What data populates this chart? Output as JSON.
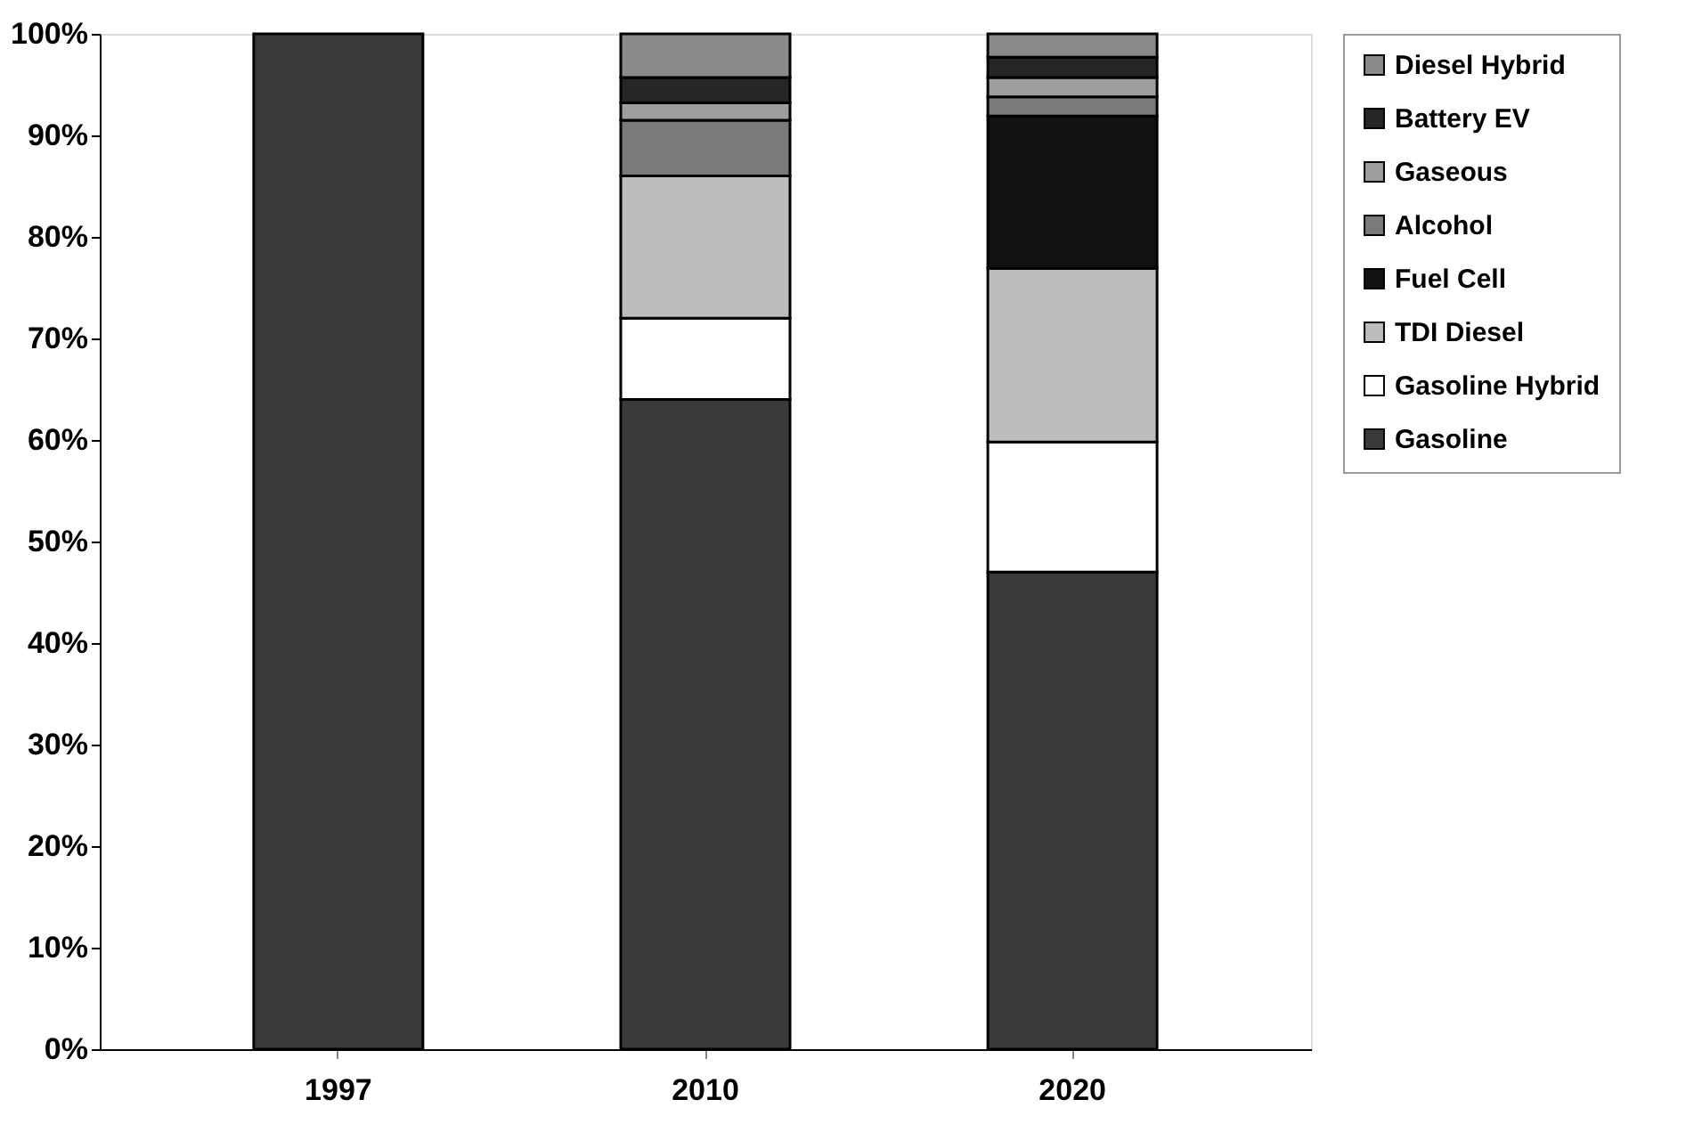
{
  "chart_data": {
    "type": "bar",
    "stacked": true,
    "categories": [
      "1997",
      "2010",
      "2020"
    ],
    "series": [
      {
        "name": "Gasoline",
        "color": "#3a3a3a",
        "values": [
          100,
          64,
          47
        ]
      },
      {
        "name": "Gasoline Hybrid",
        "color": "#ffffff",
        "values": [
          null,
          8,
          12.8
        ]
      },
      {
        "name": "TDI Diesel",
        "color": "#bdbdbd",
        "values": [
          null,
          14,
          17.1
        ]
      },
      {
        "name": "Fuel Cell",
        "color": "#111111",
        "values": [
          null,
          null,
          15
        ]
      },
      {
        "name": "Alcohol",
        "color": "#7a7a7a",
        "values": [
          null,
          5.5,
          1.9
        ]
      },
      {
        "name": "Gaseous",
        "color": "#9e9e9e",
        "values": [
          null,
          1.7,
          1.9
        ]
      },
      {
        "name": "Battery EV",
        "color": "#262626",
        "values": [
          null,
          2.5,
          2
        ]
      },
      {
        "name": "Diesel Hybrid",
        "color": "#8a8a8a",
        "values": [
          null,
          4.3,
          2.3
        ]
      }
    ],
    "ylim": [
      0,
      100
    ],
    "yticks": [
      {
        "value": 0,
        "label": "0%"
      },
      {
        "value": 10,
        "label": "10%"
      },
      {
        "value": 20,
        "label": "20%"
      },
      {
        "value": 30,
        "label": "30%"
      },
      {
        "value": 40,
        "label": "40%"
      },
      {
        "value": 50,
        "label": "50%"
      },
      {
        "value": 60,
        "label": "60%"
      },
      {
        "value": 70,
        "label": "70%"
      },
      {
        "value": 80,
        "label": "80%"
      },
      {
        "value": 90,
        "label": "90%"
      },
      {
        "value": 100,
        "label": "100%"
      }
    ],
    "grid": false,
    "legend": "right"
  }
}
